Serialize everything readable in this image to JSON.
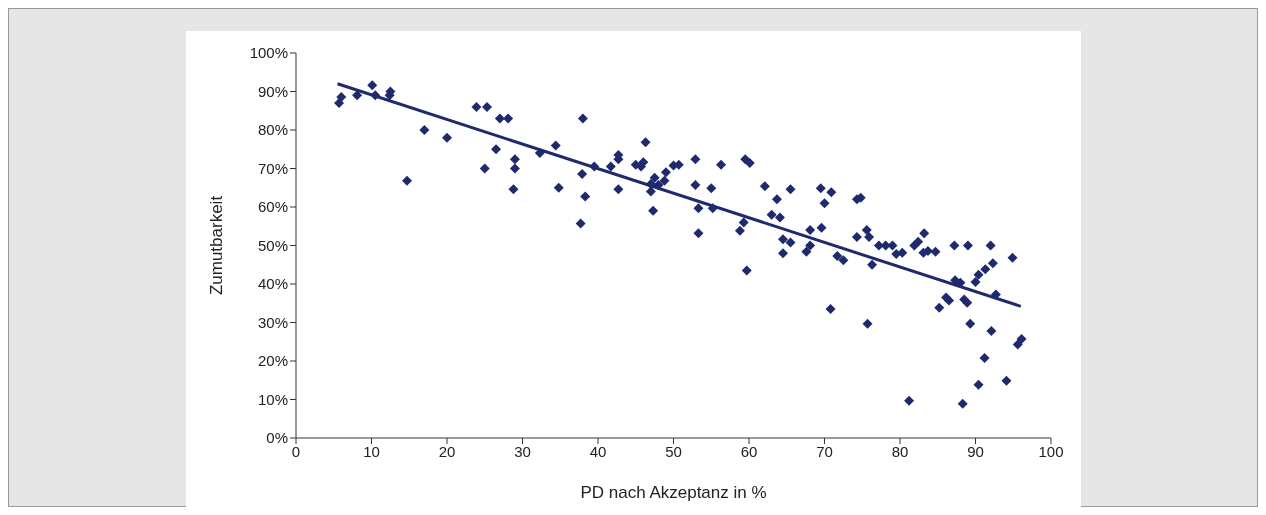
{
  "chart_data": {
    "type": "scatter",
    "xlabel": "PD nach Akzeptanz in %",
    "ylabel": "Zumutbarkeit",
    "xlim": [
      0,
      100
    ],
    "xticks": [
      0,
      10,
      20,
      30,
      40,
      50,
      60,
      70,
      80,
      90,
      100
    ],
    "ylim": [
      0,
      100
    ],
    "yticks": [
      {
        "value": 0,
        "label": "0%"
      },
      {
        "value": 10,
        "label": "10%"
      },
      {
        "value": 20,
        "label": "20%"
      },
      {
        "value": 30,
        "label": "30%"
      },
      {
        "value": 40,
        "label": "40%"
      },
      {
        "value": 50,
        "label": "50%"
      },
      {
        "value": 60,
        "label": "60%"
      },
      {
        "value": 70,
        "label": "70%"
      },
      {
        "value": 80,
        "label": "80%"
      },
      {
        "value": 90,
        "label": "90%"
      },
      {
        "value": 100,
        "label": "100%"
      }
    ],
    "legend": false,
    "series": [
      {
        "color": "#1f2a6e",
        "marker": "diamond",
        "x": [
          5.7,
          6,
          8.1,
          10.1,
          10.5,
          12.4,
          12.5,
          14.7,
          17,
          20,
          23.9,
          25.3,
          25,
          26.5,
          27,
          28.1,
          28.8,
          29,
          29,
          32.3,
          34.4,
          34.8,
          37.7,
          38,
          37.9,
          38.3,
          39.5,
          41.7,
          42.7,
          42.7,
          42.7,
          45,
          45.7,
          46.3,
          46,
          47,
          47.5,
          48,
          47,
          47.3,
          48.8,
          49,
          50,
          50.7,
          52.9,
          52.9,
          53.3,
          53.3,
          55,
          55.2,
          56.3,
          58.8,
          59.3,
          59.7,
          59.5,
          60.1,
          62.1,
          63,
          63.7,
          64.1,
          64.5,
          64.5,
          65.5,
          65.5,
          68.1,
          68.1,
          67.6,
          69.5,
          69.6,
          70,
          70.9,
          70.8,
          71.7,
          72.5,
          74.3,
          74.3,
          74.8,
          75.6,
          75.9,
          75.7,
          76.3,
          77.2,
          78.1,
          79,
          79.5,
          80.3,
          81.2,
          81.9,
          82.4,
          83.2,
          83.1,
          83.7,
          84.7,
          85.2,
          86.1,
          86.5,
          87.2,
          87.3,
          88,
          88.5,
          88.3,
          88.9,
          89,
          89.3,
          90,
          90.4,
          90.4,
          91.2,
          91.3,
          92,
          92.3,
          92.1,
          92.7,
          94.1,
          94.9,
          95.6,
          96.1
        ],
        "values": [
          87,
          88.6,
          89,
          91.6,
          89,
          89,
          90,
          66.8,
          80,
          78,
          86,
          86,
          70,
          75,
          83,
          83,
          64.6,
          72.4,
          70,
          74,
          76,
          65,
          55.7,
          83,
          68.6,
          62.7,
          70.5,
          70.5,
          73.5,
          72.4,
          64.6,
          71,
          70.5,
          76.8,
          71.6,
          66,
          67.6,
          65.7,
          64,
          59,
          66.8,
          69,
          70.8,
          71,
          72.4,
          65.7,
          59.7,
          53.2,
          64.9,
          59.7,
          71,
          53.8,
          56,
          43.5,
          72.4,
          71.4,
          65.4,
          58,
          62,
          57.3,
          51.6,
          48,
          64.6,
          50.8,
          54,
          50,
          48.4,
          64.9,
          54.6,
          61,
          63.8,
          33.5,
          47.3,
          46.2,
          52.2,
          62,
          62.4,
          54,
          52.2,
          29.7,
          45,
          50,
          50,
          50,
          47.8,
          48.1,
          9.7,
          50,
          51,
          53.2,
          48.1,
          48.6,
          48.4,
          33.8,
          36.5,
          35.7,
          50,
          41,
          40.3,
          36,
          8.9,
          35.1,
          50,
          29.7,
          40.5,
          42.4,
          13.8,
          20.8,
          43.8,
          50,
          45.4,
          27.8,
          37.3,
          14.9,
          46.8,
          24.3,
          25.7
        ]
      },
      {
        "type": "line",
        "color": "#1f2a6e",
        "marker": "none",
        "line_style": "solid",
        "x": [
          5.5,
          96
        ],
        "values": [
          92,
          34.2
        ]
      }
    ]
  }
}
